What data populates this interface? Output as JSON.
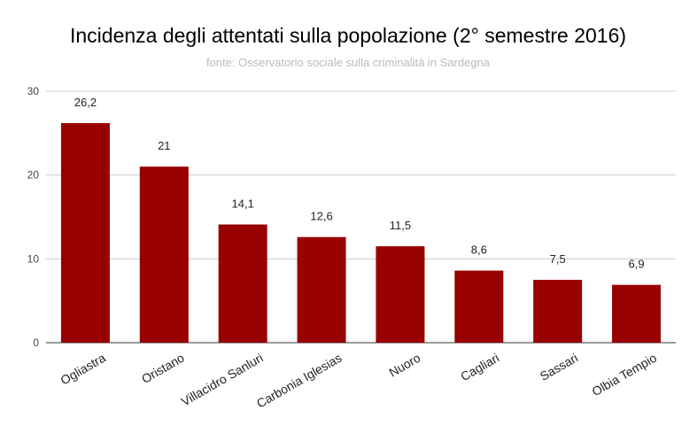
{
  "chart_data": {
    "type": "bar",
    "title": "Incidenza degli attentati sulla popolazione (2° semestre 2016)",
    "subtitle": "fonte: Osservatorio sociale sulla criminalità in Sardegna",
    "categories": [
      "Ogliastra",
      "Oristano",
      "Villacidro Sanluri",
      "Carbonia Iglesias",
      "Nuoro",
      "Cagliari",
      "Sassari",
      "Olbia Tempio"
    ],
    "values": [
      26.2,
      21,
      14.1,
      12.6,
      11.5,
      8.6,
      7.5,
      6.9
    ],
    "data_labels": [
      "26,2",
      "21",
      "14,1",
      "12,6",
      "11,5",
      "8,6",
      "7,5",
      "6,9"
    ],
    "yticks": [
      0,
      10,
      20,
      30
    ],
    "ylim": [
      0,
      30
    ],
    "xlabel": "",
    "ylabel": "",
    "grid": true,
    "legend": "none",
    "bar_color": "#990000"
  }
}
